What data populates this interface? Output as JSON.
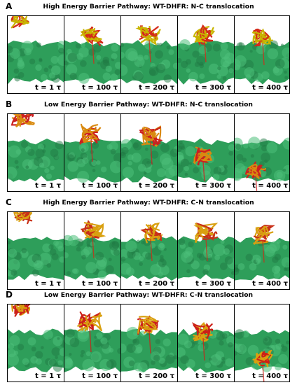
{
  "panels": [
    {
      "letter": "A",
      "title": "High Energy Barrier Pathway: WT-DHFR: N-C translocation",
      "frames": [
        "t = 1 τ",
        "t = 100 τ",
        "t = 200 τ",
        "t = 300 τ",
        "t = 400 τ"
      ],
      "protein_colors": [
        "#c8b400",
        "#d42a1a"
      ]
    },
    {
      "letter": "B",
      "title": "Low Energy Barrier Pathway: WT-DHFR: N-C translocation",
      "frames": [
        "t = 1 τ",
        "t = 100 τ",
        "t = 200 τ",
        "t = 300 τ",
        "t = 400 τ"
      ],
      "protein_colors": [
        "#d98a10",
        "#cc2020"
      ]
    },
    {
      "letter": "C",
      "title": "High Energy Barrier Pathway: WT-DHFR: C-N translocation",
      "frames": [
        "t = 1 τ",
        "t = 100 τ",
        "t = 200 τ",
        "t = 300 τ",
        "t = 400 τ"
      ],
      "protein_colors": [
        "#d9a010",
        "#c83018"
      ]
    },
    {
      "letter": "D",
      "title": "Low Energy Barrier Pathway: WT-DHFR: C-N translocation",
      "frames": [
        "t = 1 τ",
        "t = 100 τ",
        "t = 200 τ",
        "t = 300 τ",
        "t = 400 τ"
      ],
      "protein_colors": [
        "#d9a010",
        "#cc2018"
      ]
    }
  ],
  "membrane_color": "#2e9e5a",
  "membrane_highlight": "#4cc07a"
}
